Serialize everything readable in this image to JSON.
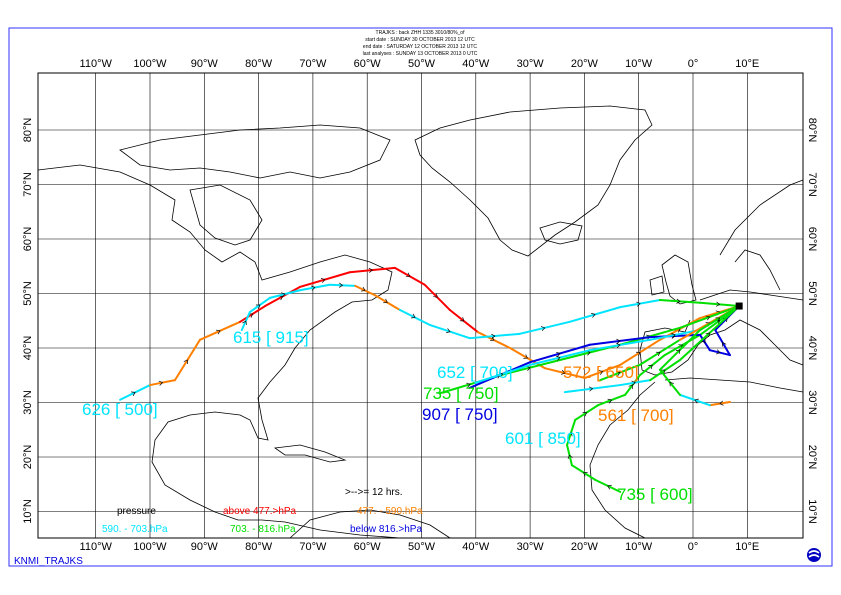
{
  "header": {
    "lines": [
      "TRAJKS : back ZHH 1335 3010/80%_of",
      "start date : SUNDAY   30 OCTOBER   2013 12 UTC",
      "end date : SATURDAY 12 OCTOBER   2013 12 UTC",
      "last analyses : SUNDAY   13 OCTOBER   2013 0 UTC"
    ]
  },
  "footer": {
    "brand": "KNMI_TRAJKS",
    "logo": "knmi-logo"
  },
  "map": {
    "projection": "equirectangular",
    "lon_range": [
      -120,
      20
    ],
    "lat_range": [
      5,
      90
    ],
    "lon_ticks": [
      "110°W",
      "100°W",
      "90°W",
      "80°W",
      "70°W",
      "60°W",
      "50°W",
      "40°W",
      "30°W",
      "20°W",
      "10°W",
      "0°",
      "10°E"
    ],
    "lat_ticks": [
      "10°N",
      "20°N",
      "30°N",
      "40°N",
      "50°N",
      "60°N",
      "70°N",
      "80°N"
    ],
    "grid": true,
    "end_point": {
      "lon": 8.5,
      "lat": 47.7
    }
  },
  "legend": {
    "title": "pressure",
    "interval": ">-->= 12 hrs.",
    "classes": [
      {
        "label": "above  477.>hPa",
        "color": "#ff0000"
      },
      {
        "label": "477. -    590.hPa",
        "color": "#ff8000"
      },
      {
        "label": "590. -    703.hPa",
        "color": "#00e5ff"
      },
      {
        "label": "703. -    816.hPa",
        "color": "#00e000"
      },
      {
        "label": "below  816.>hPa",
        "color": "#0000e0"
      }
    ]
  },
  "trajectories": [
    {
      "label": "626 [ 500]",
      "color": "#00e5ff",
      "points": [
        [
          -105.5,
          30.5
        ],
        [
          -100.0,
          33.2
        ],
        [
          -95.4,
          34.1
        ],
        [
          -90.8,
          41.5
        ],
        [
          -83.4,
          44.8
        ],
        [
          -78.8,
          47.7
        ],
        [
          -72.4,
          51.2
        ],
        [
          -63.2,
          53.9
        ],
        [
          -54.9,
          54.7
        ],
        [
          -49.4,
          51.6
        ],
        [
          -44.8,
          47.0
        ],
        [
          -39.6,
          42.9
        ],
        [
          -33.7,
          40.0
        ],
        [
          -27.3,
          36.3
        ],
        [
          -19.9,
          34.5
        ],
        [
          -13.4,
          36.9
        ],
        [
          -6.1,
          41.5
        ],
        [
          1.3,
          45.5
        ],
        [
          8.5,
          47.7
        ]
      ],
      "segment_colors": [
        "#00e5ff",
        "#ff8000",
        "#ff8000",
        "#ff8000",
        "#ff0000",
        "#ff0000",
        "#ff0000",
        "#ff0000",
        "#ff0000",
        "#ff0000",
        "#ff0000",
        "#ff8000",
        "#ff8000",
        "#ff8000",
        "#ff8000",
        "#ff8000",
        "#ff8000",
        "#ff8000"
      ]
    },
    {
      "label": "615 [ 915]",
      "color": "#00e5ff",
      "points": [
        [
          -83.1,
          43.3
        ],
        [
          -81.6,
          46.6
        ],
        [
          -77.9,
          49.2
        ],
        [
          -72.4,
          50.6
        ],
        [
          -66.9,
          51.6
        ],
        [
          -62.2,
          51.4
        ],
        [
          -58.6,
          49.7
        ],
        [
          -54.0,
          47.0
        ],
        [
          -48.4,
          44.2
        ],
        [
          -41.1,
          41.8
        ],
        [
          -31.9,
          42.6
        ],
        [
          -22.7,
          44.8
        ],
        [
          -13.4,
          47.5
        ],
        [
          -6.1,
          48.8
        ],
        [
          1.3,
          48.3
        ],
        [
          8.5,
          47.7
        ]
      ],
      "segment_colors": [
        "#00e5ff",
        "#00e5ff",
        "#00e5ff",
        "#00e5ff",
        "#00e5ff",
        "#ff8000",
        "#ff8000",
        "#00e5ff",
        "#00e5ff",
        "#00e5ff",
        "#00e5ff",
        "#00e5ff",
        "#00e5ff",
        "#00e000",
        "#00e000"
      ]
    },
    {
      "label": "735 [ 600]",
      "color": "#00e000",
      "points": [
        [
          -13.4,
          13.6
        ],
        [
          -18.0,
          15.8
        ],
        [
          -22.3,
          18.5
        ],
        [
          -23.2,
          22.2
        ],
        [
          -21.7,
          26.8
        ],
        [
          -17.5,
          29.5
        ],
        [
          -12.5,
          31.4
        ],
        [
          -9.8,
          35.0
        ],
        [
          -5.2,
          38.7
        ],
        [
          1.3,
          42.4
        ],
        [
          8.5,
          47.7
        ]
      ]
    },
    {
      "label": "735 [ 750]",
      "color": "#00e000",
      "points": [
        [
          -46.6,
          31.7
        ],
        [
          -35.5,
          35.0
        ],
        [
          -24.5,
          37.8
        ],
        [
          -13.4,
          40.6
        ],
        [
          -2.4,
          43.7
        ],
        [
          8.5,
          47.7
        ]
      ]
    },
    {
      "label": "907 [ 750]",
      "color": "#0000e0",
      "points": [
        [
          -41.1,
          32.7
        ],
        [
          -30.0,
          37.4
        ],
        [
          -19.0,
          40.6
        ],
        [
          -7.9,
          42.0
        ],
        [
          1.3,
          42.4
        ],
        [
          3.1,
          39.6
        ],
        [
          6.8,
          38.7
        ],
        [
          4.1,
          43.3
        ],
        [
          8.5,
          47.7
        ]
      ]
    },
    {
      "label": "652 [ 700]",
      "color": "#00e5ff",
      "points": [
        [
          -40.1,
          33.6
        ],
        [
          -30.0,
          36.9
        ],
        [
          -19.0,
          39.6
        ],
        [
          -7.9,
          41.5
        ],
        [
          1.3,
          43.3
        ],
        [
          8.5,
          47.7
        ]
      ]
    },
    {
      "label": "601 [ 850]",
      "color": "#00e5ff",
      "points": [
        [
          -23.6,
          31.9
        ],
        [
          -13.4,
          33.2
        ],
        [
          -7.9,
          34.1
        ],
        [
          -2.4,
          37.8
        ],
        [
          8.5,
          47.7
        ]
      ],
      "segment_colors": [
        "#00e5ff",
        "#00e5ff",
        "#00e000",
        "#00e000"
      ]
    },
    {
      "label": "572 [ 650]",
      "color": "#ff8000",
      "points": [
        [
          -17.1,
          34.1
        ],
        [
          -9.8,
          36.9
        ],
        [
          -2.4,
          41.5
        ],
        [
          8.5,
          47.7
        ]
      ],
      "segment_colors": [
        "#00e000",
        "#00e000",
        "#ff8000"
      ]
    },
    {
      "label": "561 [ 700]",
      "color": "#ff8000",
      "points": [
        [
          6.8,
          30.1
        ],
        [
          3.1,
          29.5
        ],
        [
          -2.4,
          31.4
        ],
        [
          -6.1,
          36.0
        ],
        [
          1.3,
          43.3
        ],
        [
          8.5,
          47.7
        ]
      ],
      "segment_colors": [
        "#ff8000",
        "#00e5ff",
        "#00e000",
        "#00e000",
        "#00e000"
      ]
    }
  ]
}
